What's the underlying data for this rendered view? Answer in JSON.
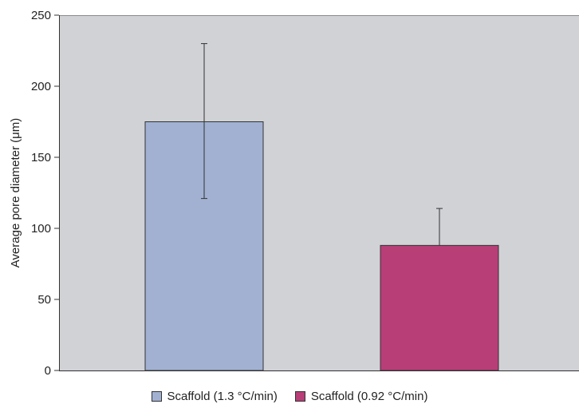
{
  "chart_data": {
    "type": "bar",
    "ylabel": "Average pore diameter (μm)",
    "xlabel": "",
    "ylim": [
      0,
      250
    ],
    "yticks": [
      0,
      50,
      100,
      150,
      200,
      250
    ],
    "grid": false,
    "legend_position": "bottom",
    "plot_background": "#d1d2d6",
    "series": [
      {
        "name": "Scaffold (1.3 °C/min)",
        "value": 175,
        "error_low": 121,
        "error_high": 230,
        "color": "#a2b1d2"
      },
      {
        "name": "Scaffold (0.92 °C/min)",
        "value": 88,
        "error_low": 88,
        "error_high": 114,
        "color": "#b83e78"
      }
    ]
  }
}
